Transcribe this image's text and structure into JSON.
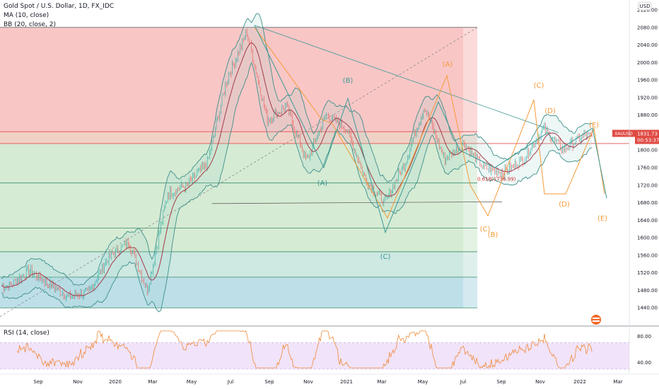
{
  "legend": {
    "symbol": "Gold Spot / U.S. Dollar, 1D, FX_IDC",
    "ma": "MA (10, close)",
    "bb": "BB (20, close, 2)",
    "rsi": "RSI (14, close)"
  },
  "currency": "USD",
  "price_tag": {
    "symbol": "XAUUSD",
    "price": "1831.73",
    "countdown": "00:53:37"
  },
  "overlay_text": "0.618(1736.99)",
  "colors": {
    "red_zone": "#f8b8b8",
    "peach_zone": "#f0ccc0",
    "green_zone": "#cfe8cc",
    "teal_zone": "#c9e6df",
    "blue_zone": "#b7dbe6",
    "bb": "#3d8f8a",
    "ma": "#a43a48",
    "orange_wave": "#f59b3a",
    "teal_wave": "#3c9a95",
    "rsi_line": "#ef8a3a",
    "rsi_band": "#eedcf8",
    "price_tag": "#e04a43"
  },
  "chart_data": [
    {
      "type": "line",
      "title": "Gold Spot / U.S. Dollar, 1D, FX_IDC",
      "y_range": [
        1400,
        2120
      ],
      "y_ticks": [
        "2120.00",
        "2080.00",
        "2040.00",
        "2000.00",
        "1960.00",
        "1920.00",
        "1880.00",
        "1840.00",
        "1800.00",
        "1760.00",
        "1720.00",
        "1680.00",
        "1640.00",
        "1600.00",
        "1560.00",
        "1520.00",
        "1480.00",
        "1440.00"
      ],
      "x_ticks": [
        "Sep",
        "Nov",
        "2020",
        "Mar",
        "May",
        "Jul",
        "Sep",
        "Nov",
        "2021",
        "Mar",
        "May",
        "Jul",
        "Sep",
        "Nov",
        "2022",
        "Mar"
      ],
      "series": [
        {
          "name": "MA (10, close)"
        },
        {
          "name": "BB (20, close, 2)"
        }
      ],
      "approx_close_path": [
        [
          "2019-08",
          1490
        ],
        [
          "2019-09",
          1525
        ],
        [
          "2019-10",
          1495
        ],
        [
          "2019-11",
          1465
        ],
        [
          "2019-12",
          1475
        ],
        [
          "2020-01",
          1555
        ],
        [
          "2020-02",
          1590
        ],
        [
          "2020-03",
          1480
        ],
        [
          "2020-04",
          1700
        ],
        [
          "2020-05",
          1720
        ],
        [
          "2020-06",
          1770
        ],
        [
          "2020-07",
          1960
        ],
        [
          "2020-08",
          2070
        ],
        [
          "2020-09",
          1870
        ],
        [
          "2020-10",
          1900
        ],
        [
          "2020-11",
          1775
        ],
        [
          "2020-12",
          1880
        ],
        [
          "2021-01",
          1850
        ],
        [
          "2021-02",
          1730
        ],
        [
          "2021-03",
          1680
        ],
        [
          "2021-04",
          1770
        ],
        [
          "2021-05",
          1900
        ],
        [
          "2021-06",
          1780
        ],
        [
          "2021-07",
          1815
        ],
        [
          "2021-08",
          1760
        ],
        [
          "2021-09",
          1750
        ],
        [
          "2021-10",
          1780
        ],
        [
          "2021-11",
          1850
        ],
        [
          "2021-12",
          1800
        ],
        [
          "2022-01",
          1832
        ]
      ],
      "wave_labels": [
        "(A)",
        "(B)",
        "(C)",
        "(A)",
        "(B)",
        "(C)",
        "(D)",
        "(E)",
        "(C)",
        "(D)",
        "(E)"
      ]
    },
    {
      "type": "line",
      "title": "RSI (14, close)",
      "y_range": [
        30,
        90
      ],
      "y_ticks": [
        "80.00",
        "40.00"
      ],
      "series": [
        {
          "name": "RSI (14, close)"
        }
      ]
    }
  ]
}
